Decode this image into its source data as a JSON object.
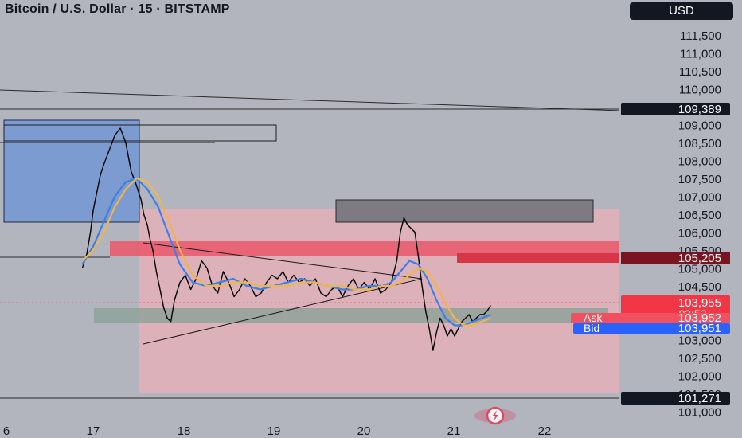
{
  "header": {
    "title": "Bitcoin / U.S. Dollar · 15 · BITSTAMP",
    "currency": "USD"
  },
  "chart_data": {
    "type": "line",
    "x_ticks": [
      "6",
      "17",
      "18",
      "19",
      "20",
      "21",
      "22"
    ],
    "y_ticks": [
      "111,500",
      "111,000",
      "110,500",
      "110,000",
      "109,500",
      "109,000",
      "108,500",
      "108,000",
      "107,500",
      "107,000",
      "106,500",
      "106,000",
      "105,500",
      "105,000",
      "104,500",
      "104,000",
      "103,500",
      "103,000",
      "102,500",
      "102,000",
      "101,500",
      "101,000"
    ],
    "ylim": [
      100800,
      111800
    ],
    "series": [
      {
        "x": [
          16.88,
          16.93,
          16.97,
          17.0,
          17.04,
          17.08,
          17.12,
          17.18,
          17.24,
          17.3,
          17.36,
          17.42,
          17.48,
          17.53,
          17.56,
          17.6,
          17.63,
          17.66,
          17.7,
          17.74,
          17.78,
          17.82,
          17.86,
          17.9,
          17.96,
          18.02,
          18.08,
          18.14,
          18.2,
          18.26,
          18.32,
          18.38,
          18.44,
          18.5,
          18.56,
          18.62,
          18.68,
          18.74,
          18.8,
          18.86,
          18.92,
          18.98,
          19.04,
          19.1,
          19.16,
          19.22,
          19.28,
          19.34,
          19.4,
          19.46,
          19.52,
          19.58,
          19.64,
          19.7,
          19.76,
          19.82,
          19.88,
          19.94,
          20.0,
          20.06,
          20.12,
          20.18,
          20.24,
          20.3,
          20.36,
          20.4,
          20.44,
          20.48,
          20.52,
          20.56,
          20.6,
          20.64,
          20.68,
          20.72,
          20.76,
          20.8,
          20.84,
          20.88,
          20.92,
          20.96,
          21.0,
          21.04,
          21.08,
          21.12,
          21.16,
          21.2,
          21.24,
          21.28,
          21.32,
          21.36,
          21.4
        ],
        "y": [
          105000,
          105400,
          106000,
          106600,
          107100,
          107600,
          107900,
          108300,
          108700,
          108900,
          108500,
          107700,
          107300,
          106900,
          106500,
          106200,
          105800,
          105500,
          104900,
          104400,
          103900,
          103600,
          103500,
          104100,
          104600,
          104800,
          104400,
          104700,
          105200,
          105000,
          104500,
          104300,
          104900,
          104600,
          104200,
          104400,
          104700,
          104500,
          104200,
          104300,
          104600,
          104800,
          104700,
          104900,
          104600,
          104800,
          104600,
          104700,
          104500,
          104700,
          104300,
          104200,
          104400,
          104500,
          104200,
          104500,
          104700,
          104400,
          104600,
          104400,
          104700,
          104300,
          104400,
          104600,
          105200,
          106000,
          106400,
          106200,
          106100,
          106000,
          105300,
          104500,
          103800,
          103300,
          102700,
          103200,
          103600,
          103400,
          103100,
          103300,
          103100,
          103300,
          103500,
          103600,
          103700,
          103500,
          103600,
          103700,
          103700,
          103800,
          103955
        ]
      },
      {
        "x": [
          16.88,
          17.0,
          17.12,
          17.24,
          17.36,
          17.48,
          17.6,
          17.72,
          17.84,
          17.96,
          18.1,
          18.25,
          18.4,
          18.55,
          18.7,
          18.85,
          19.0,
          19.15,
          19.3,
          19.45,
          19.6,
          19.75,
          19.9,
          20.05,
          20.2,
          20.3,
          20.4,
          20.5,
          20.6,
          20.7,
          20.8,
          20.9,
          21.0,
          21.1,
          21.2,
          21.3,
          21.4
        ],
        "y": [
          105100,
          105600,
          106300,
          107000,
          107400,
          107500,
          107200,
          106700,
          105900,
          105100,
          104600,
          104500,
          104600,
          104700,
          104500,
          104400,
          104500,
          104600,
          104700,
          104600,
          104500,
          104400,
          104400,
          104500,
          104500,
          104600,
          104900,
          105200,
          105100,
          104700,
          104100,
          103600,
          103400,
          103400,
          103500,
          103600,
          103700
        ]
      },
      {
        "x": [
          16.88,
          17.0,
          17.12,
          17.24,
          17.36,
          17.48,
          17.6,
          17.72,
          17.84,
          17.96,
          18.1,
          18.25,
          18.4,
          18.55,
          18.7,
          18.85,
          19.0,
          19.15,
          19.3,
          19.45,
          19.6,
          19.75,
          19.9,
          20.05,
          20.2,
          20.3,
          20.4,
          20.5,
          20.6,
          20.7,
          20.8,
          20.9,
          21.0,
          21.1,
          21.2,
          21.3,
          21.4
        ],
        "y": [
          105200,
          105500,
          106000,
          106700,
          107200,
          107500,
          107400,
          107000,
          106300,
          105500,
          104800,
          104500,
          104500,
          104600,
          104600,
          104500,
          104500,
          104500,
          104600,
          104600,
          104500,
          104500,
          104400,
          104400,
          104500,
          104500,
          104600,
          104800,
          105000,
          104900,
          104500,
          104000,
          103600,
          103400,
          103400,
          103500,
          103600
        ]
      }
    ],
    "price_labels": {
      "level_top": "109,389",
      "level_red": "105,205",
      "last": "103,955",
      "countdown": "03:53",
      "ask_label": "Ask",
      "ask": "103,952",
      "bid_label": "Bid",
      "bid": "103,951",
      "level_bottom": "101,271"
    },
    "colors": {
      "background": "#b2b5be",
      "candle": "#000000",
      "ma_fast": "#3f7ee8",
      "ma_slow": "#f0b64a",
      "zone_pink": "#e3b0ba",
      "zone_red": "#e85d6f",
      "zone_blue": "#7b9bd1",
      "zone_grey": "#7e7a81"
    },
    "grid": false
  },
  "logo": {
    "icon": "tradingview-logo-icon"
  }
}
